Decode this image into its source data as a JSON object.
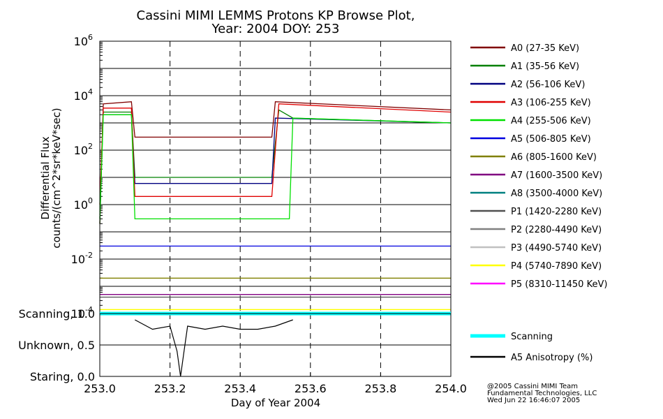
{
  "chart_data": [
    {
      "type": "line",
      "title": "Cassini MIMI LEMMS Protons KP Browse Plot,",
      "subtitle": "Year: 2004 DOY: 253",
      "ylabel_line1": "Differential Flux",
      "ylabel_line2": "counts/(cm^2*sr*keV*sec)",
      "yscale": "log",
      "xlim": [
        253.0,
        254.0
      ],
      "ylim": [
        0.0001,
        1000000
      ],
      "y_tick_labels": [
        "10^-4",
        "10^-2",
        "10^0",
        "10^2",
        "10^4",
        "10^6"
      ],
      "grid": true,
      "legend_position": "right",
      "series": [
        {
          "name": "A0 (27-35 KeV)",
          "color": "#800000",
          "segments": [
            [
              253.0,
              0.2
            ],
            [
              253.01,
              5000
            ],
            [
              253.09,
              6000
            ],
            [
              253.1,
              300
            ],
            [
              253.49,
              300
            ],
            [
              253.5,
              6000
            ],
            [
              254.0,
              3000
            ]
          ]
        },
        {
          "name": "A1 (35-56 KeV)",
          "color": "#008000",
          "segments": [
            [
              253.0,
              0.2
            ],
            [
              253.01,
              2500
            ],
            [
              253.09,
              2500
            ],
            [
              253.1,
              10
            ],
            [
              253.49,
              10
            ],
            [
              253.51,
              3000
            ],
            [
              253.55,
              1500
            ],
            [
              254.0,
              1000
            ]
          ]
        },
        {
          "name": "A2 (56-106 KeV)",
          "color": "#000080",
          "segments": [
            [
              253.01,
              2000
            ],
            [
              253.09,
              2000
            ],
            [
              253.1,
              6
            ],
            [
              253.49,
              6
            ],
            [
              253.5,
              1500
            ],
            [
              254.0,
              1000
            ]
          ]
        },
        {
          "name": "A3 (106-255 KeV)",
          "color": "#e00000",
          "segments": [
            [
              253.0,
              1
            ],
            [
              253.01,
              3500
            ],
            [
              253.09,
              3500
            ],
            [
              253.1,
              2
            ],
            [
              253.49,
              2
            ],
            [
              253.51,
              5000
            ],
            [
              254.0,
              2500
            ]
          ]
        },
        {
          "name": "A4 (255-506 KeV)",
          "color": "#00e000",
          "segments": [
            [
              253.0,
              0.3
            ],
            [
              253.01,
              2000
            ],
            [
              253.09,
              2000
            ],
            [
              253.1,
              0.3
            ],
            [
              253.54,
              0.3
            ],
            [
              253.55,
              1500
            ],
            [
              254.0,
              1000
            ]
          ]
        },
        {
          "name": "A5 (506-805 KeV)",
          "color": "#0000e0",
          "segments": [
            [
              253.0,
              0.03
            ],
            [
              254.0,
              0.03
            ]
          ]
        },
        {
          "name": "A6 (805-1600 KeV)",
          "color": "#808000",
          "segments": [
            [
              253.0,
              0.002
            ],
            [
              254.0,
              0.002
            ]
          ]
        },
        {
          "name": "A7 (1600-3500 KeV)",
          "color": "#800080",
          "segments": [
            [
              253.0,
              0.0005
            ],
            [
              254.0,
              0.0005
            ]
          ]
        },
        {
          "name": "A8 (3500-4000 KeV)",
          "color": "#008080",
          "segments": []
        },
        {
          "name": "P1 (1420-2280 KeV)",
          "color": "#505050",
          "segments": [
            [
              253.0,
              0.0004
            ],
            [
              254.0,
              0.0004
            ]
          ]
        },
        {
          "name": "P2 (2280-4490 KeV)",
          "color": "#808080",
          "segments": []
        },
        {
          "name": "P3 (4490-5740 KeV)",
          "color": "#c0c0c0",
          "segments": []
        },
        {
          "name": "P4 (5740-7890 KeV)",
          "color": "#ffff00",
          "segments": [
            [
              253.0,
              0.00014
            ],
            [
              254.0,
              0.00014
            ]
          ]
        },
        {
          "name": "P5 (8310-11450 KeV)",
          "color": "#ff00ff",
          "segments": []
        }
      ]
    },
    {
      "type": "line",
      "xlabel": "Day of Year 2004",
      "x_ticks": [
        253.0,
        253.2,
        253.4,
        253.6,
        253.8,
        254.0
      ],
      "x_tick_labels": [
        "253.0",
        "253.2",
        "253.4",
        "253.6",
        "253.8",
        "254.0"
      ],
      "xlim": [
        253.0,
        254.0
      ],
      "ylim": [
        0.0,
        1.0
      ],
      "y_ticks": [
        1.0,
        0.5,
        0.0
      ],
      "y_tick_labels": [
        "Scanning, 1.0",
        "Unknown, 0.5",
        "Staring, 0.0"
      ],
      "series": [
        {
          "name": "Scanning",
          "color": "#00ffff",
          "x": [
            253.0,
            254.0
          ],
          "values": [
            1.0,
            1.0
          ]
        },
        {
          "name": "A5 Anisotropy (%)",
          "color": "#000000",
          "x": [
            253.1,
            253.15,
            253.2,
            253.22,
            253.23,
            253.24,
            253.25,
            253.3,
            253.35,
            253.4,
            253.45,
            253.5,
            253.55
          ],
          "values": [
            0.9,
            0.75,
            0.8,
            0.4,
            0.0,
            0.4,
            0.8,
            0.75,
            0.8,
            0.75,
            0.75,
            0.8,
            0.9
          ]
        }
      ]
    }
  ],
  "credits": {
    "line1": "@2005 Cassini MIMI Team",
    "line2": "Fundamental Technologies, LLC",
    "line3": "Wed Jun 22 16:46:07 2005"
  }
}
